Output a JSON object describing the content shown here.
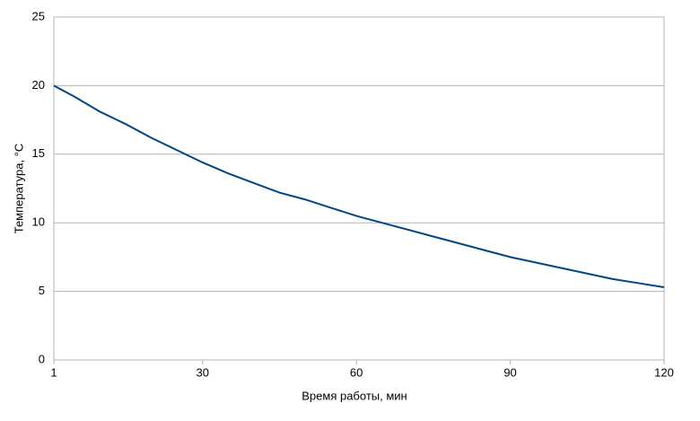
{
  "chart_data": {
    "type": "line",
    "x_label": "Время работы, мин",
    "y_label": "Температура, °C",
    "x": [
      1,
      5,
      10,
      15,
      20,
      25,
      30,
      35,
      40,
      45,
      50,
      55,
      60,
      65,
      70,
      75,
      80,
      85,
      90,
      95,
      100,
      105,
      110,
      115,
      120
    ],
    "series": [
      {
        "color": "#004586",
        "values": [
          20.0,
          19.2,
          18.1,
          17.2,
          16.2,
          15.3,
          14.4,
          13.6,
          12.9,
          12.2,
          11.7,
          11.1,
          10.5,
          10.0,
          9.5,
          9.0,
          8.5,
          8.0,
          7.5,
          7.1,
          6.7,
          6.3,
          5.9,
          5.6,
          5.3
        ]
      }
    ],
    "xlim": [
      1,
      120
    ],
    "xticks": [
      1,
      30,
      60,
      90,
      120
    ],
    "ylim": [
      0,
      25
    ],
    "yticks": [
      0,
      5,
      10,
      15,
      20,
      25
    ],
    "grid": true
  }
}
